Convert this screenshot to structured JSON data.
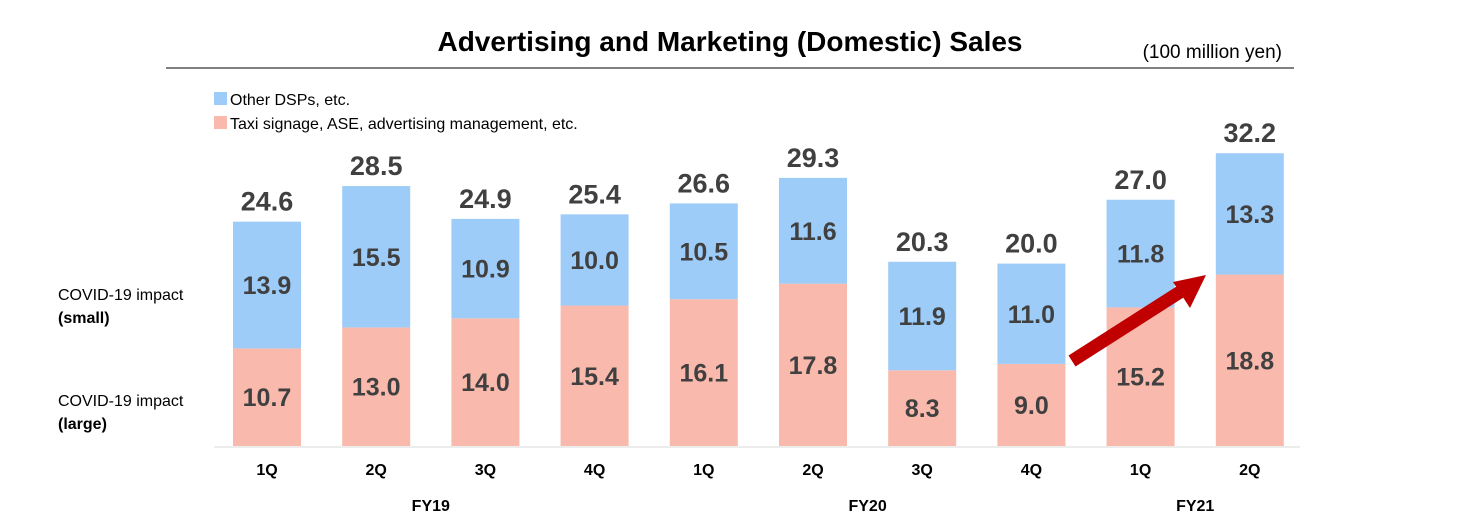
{
  "chart_data": {
    "type": "bar",
    "stacked": true,
    "title": "Advertising and Marketing (Domestic) Sales",
    "unit": "(100 million yen)",
    "categories": [
      "1Q",
      "2Q",
      "3Q",
      "4Q",
      "1Q",
      "2Q",
      "3Q",
      "4Q",
      "1Q",
      "2Q"
    ],
    "groups": [
      {
        "label": "FY19",
        "start": 0,
        "end": 3
      },
      {
        "label": "FY20",
        "start": 4,
        "end": 7
      },
      {
        "label": "FY21",
        "start": 8,
        "end": 9
      }
    ],
    "series": [
      {
        "name": "Taxi signage, ASE, advertising management, etc.",
        "color": "#F9B9AC",
        "values": [
          10.7,
          13.0,
          14.0,
          15.4,
          16.1,
          17.8,
          8.3,
          9.0,
          15.2,
          18.8
        ]
      },
      {
        "name": "Other DSPs, etc.",
        "color": "#9DCCF8",
        "values": [
          13.9,
          15.5,
          10.9,
          10.0,
          10.5,
          11.6,
          11.9,
          11.0,
          11.8,
          13.3
        ]
      }
    ],
    "totals": [
      24.6,
      28.5,
      24.9,
      25.4,
      26.6,
      29.3,
      20.3,
      20.0,
      27.0,
      32.2
    ],
    "annotations": [
      {
        "line1": "COVID-19 impact",
        "line2": "(small)"
      },
      {
        "line1": "COVID-19 impact",
        "line2": "(large)"
      }
    ],
    "arrow_color": "#C00000",
    "legend_position": "top-left"
  }
}
